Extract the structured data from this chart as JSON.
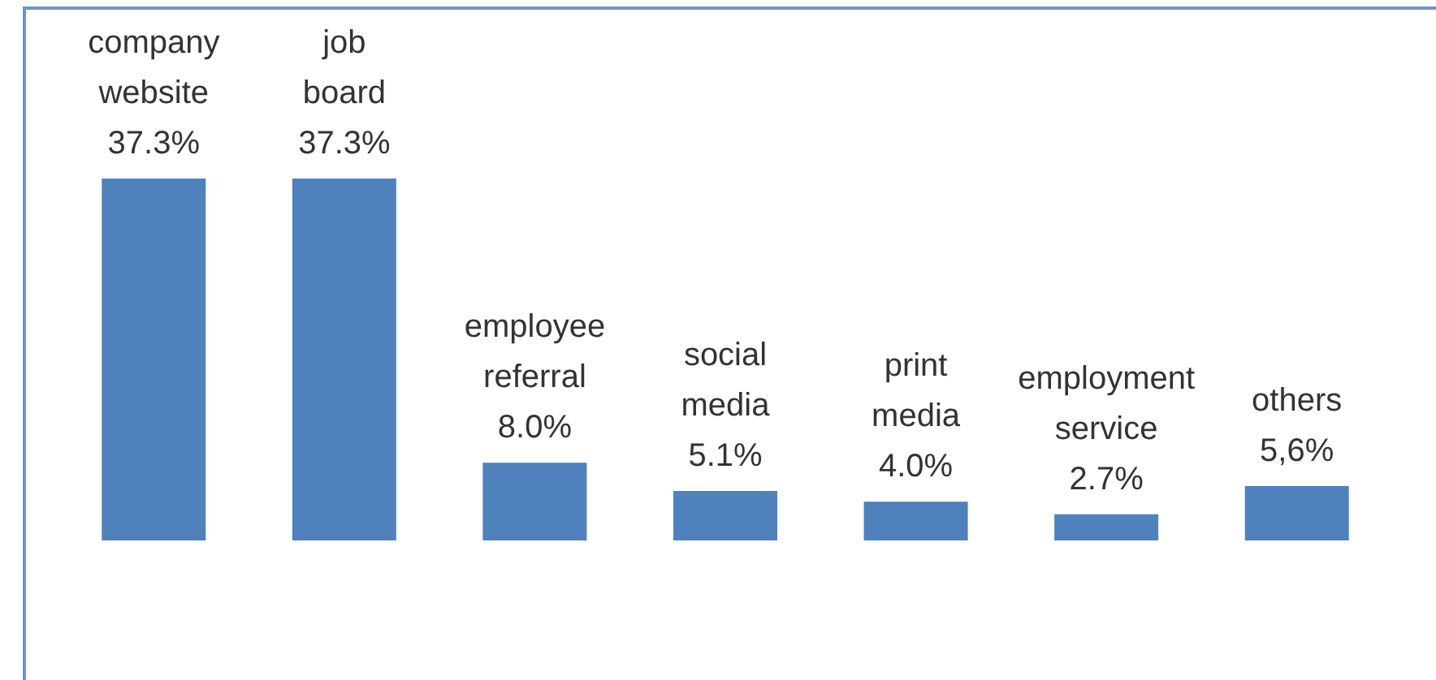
{
  "chart_data": {
    "type": "bar",
    "categories": [
      "company website",
      "job board",
      "employee referral",
      "social media",
      "print media",
      "employment service",
      "others"
    ],
    "values": [
      37.3,
      37.3,
      8.0,
      5.1,
      4.0,
      2.7,
      5.6
    ],
    "value_labels": [
      "37.3%",
      "37.3%",
      "8.0%",
      "5.1%",
      "4.0%",
      "2.7%",
      "5,6%"
    ],
    "color": "#4f81bd"
  }
}
